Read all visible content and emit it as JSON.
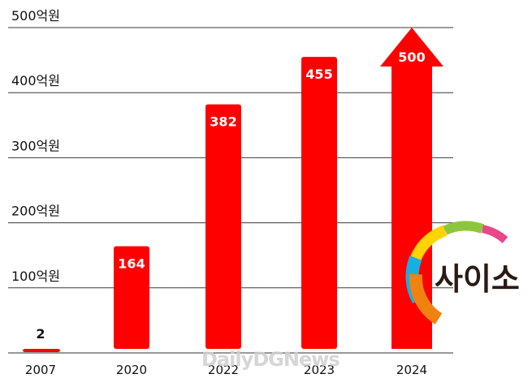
{
  "chart_data": {
    "type": "bar",
    "categories": [
      "2007",
      "2020",
      "2022",
      "2023",
      "2024"
    ],
    "values": [
      2,
      164,
      382,
      455,
      500
    ],
    "value_labels": [
      "2",
      "164",
      "382",
      "455",
      "500"
    ],
    "y_ticks": [
      100,
      200,
      300,
      400,
      500
    ],
    "y_tick_labels": [
      "100억원",
      "200억원",
      "300억원",
      "400억원",
      "500억원"
    ],
    "ylim": [
      0,
      500
    ],
    "grid": true,
    "bar_color": "#ff0000",
    "last_bar_style": "arrow"
  },
  "watermark": "DailyDGNews",
  "logo": {
    "text": "사이소"
  }
}
